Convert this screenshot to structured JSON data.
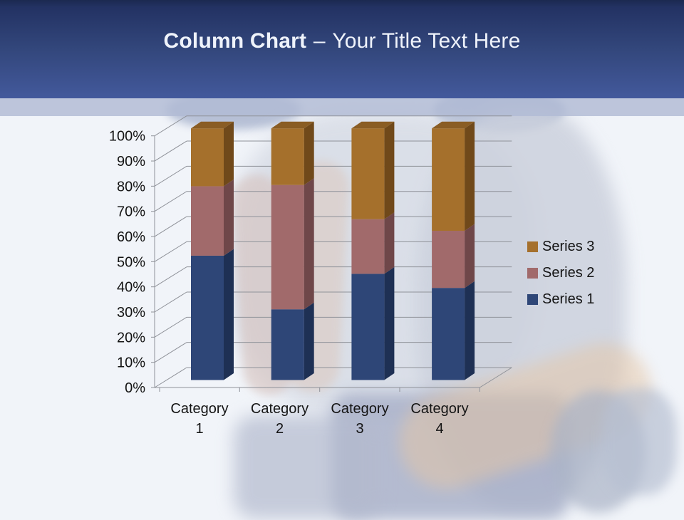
{
  "slide": {
    "title_bold": "Column Chart",
    "title_separator": "–",
    "title_rest": "Your Title Text Here"
  },
  "theme": {
    "header_gradient_top": "#1b2950",
    "header_gradient_bottom": "#43599c",
    "band_color": "#b1bbd4",
    "page_background": "#f1f4f9",
    "title_color": "#eff3fb",
    "gridline_color": "#8f9299",
    "axis_text_color": "#141414"
  },
  "chart_data": {
    "type": "bar",
    "subtype": "3d-column-100-percent-stacked",
    "title": "",
    "categories": [
      "Category 1",
      "Category 2",
      "Category 3",
      "Category 4"
    ],
    "series": [
      {
        "name": "Series 1",
        "color": "#2e4677",
        "side_color": "#1e3054",
        "top_color": "#273c66",
        "values_pct": [
          49.4,
          28.1,
          42.2,
          36.6
        ]
      },
      {
        "name": "Series 2",
        "color": "#a16a6b",
        "side_color": "#6f4749",
        "top_color": "#8a5a5c",
        "values_pct": [
          27.6,
          49.4,
          21.7,
          22.7
        ]
      },
      {
        "name": "Series 3",
        "color": "#a5702c",
        "side_color": "#70491a",
        "top_color": "#8a5d24",
        "values_pct": [
          23.0,
          22.5,
          36.1,
          40.7
        ]
      }
    ],
    "value_axis": {
      "min": 0,
      "max": 100,
      "unit": "%",
      "ticks": [
        "0%",
        "10%",
        "20%",
        "30%",
        "40%",
        "50%",
        "60%",
        "70%",
        "80%",
        "90%",
        "100%"
      ]
    },
    "category_axis": {
      "label_lines": 2
    },
    "legend": {
      "position": "right",
      "entries_top_to_bottom": [
        "Series 3",
        "Series 2",
        "Series 1"
      ]
    },
    "grid": true,
    "stacking": "percent"
  }
}
